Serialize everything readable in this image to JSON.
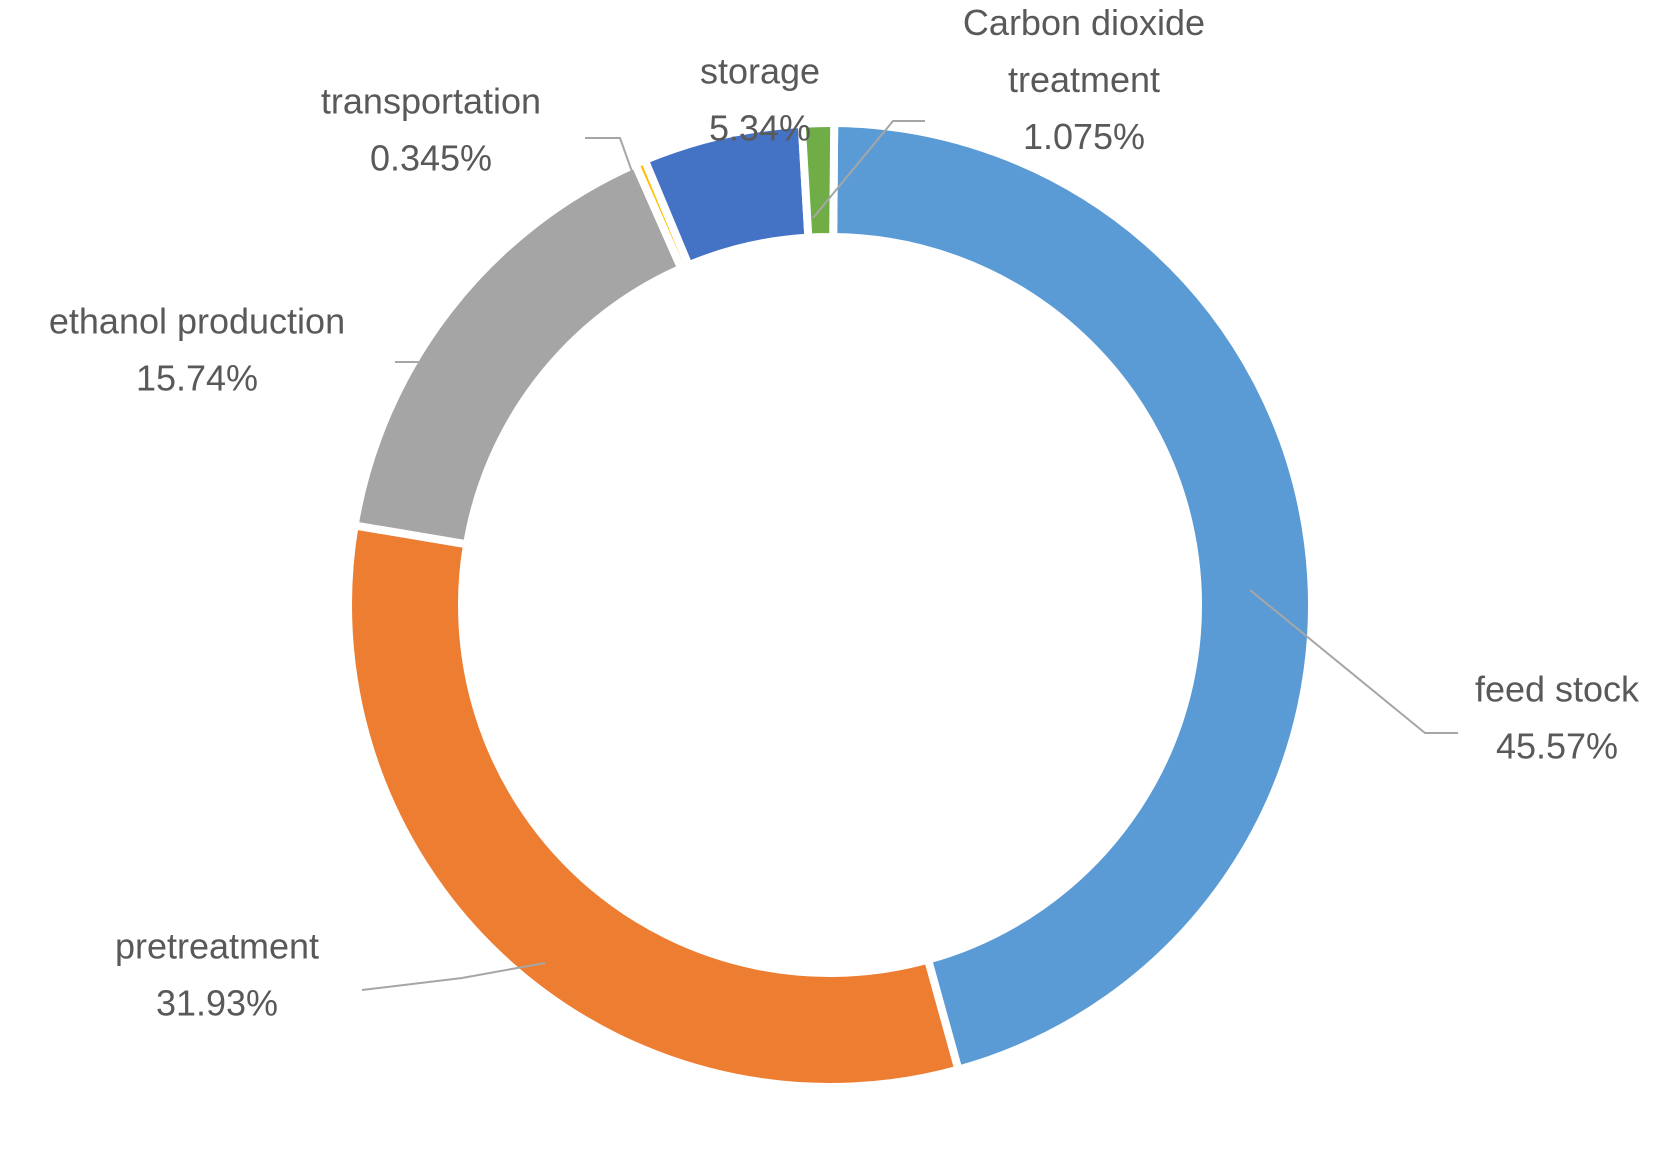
{
  "chart_data": {
    "type": "pie",
    "variant": "donut",
    "title": "",
    "legend": "none",
    "slices": [
      {
        "label": "feed stock",
        "value": 45.57,
        "value_label": "45.57%",
        "color": "#5b9bd5"
      },
      {
        "label": "pretreatment",
        "value": 31.93,
        "value_label": "31.93%",
        "color": "#ed7d31"
      },
      {
        "label": "ethanol production",
        "value": 15.74,
        "value_label": "15.74%",
        "color": "#a5a5a5"
      },
      {
        "label": "transportation",
        "value": 0.345,
        "value_label": "0.345%",
        "color": "#ffc000"
      },
      {
        "label": "storage",
        "value": 5.34,
        "value_label": "5.34%",
        "color": "#4472c4"
      },
      {
        "label": "Carbon dioxide treatment",
        "label_lines": [
          "Carbon dioxide",
          "treatment"
        ],
        "value": 1.075,
        "value_label": "1.075%",
        "color": "#70ad47"
      }
    ]
  }
}
